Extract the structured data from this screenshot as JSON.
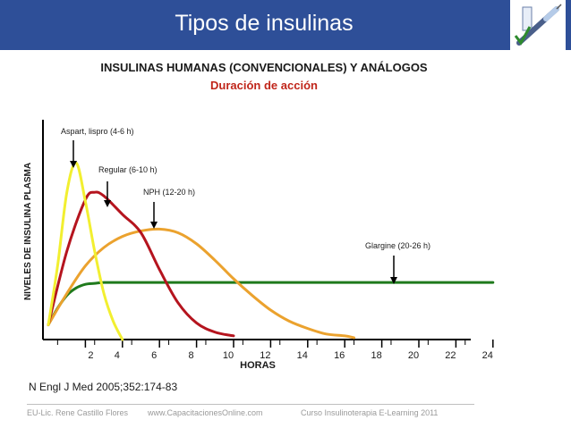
{
  "slide": {
    "title": "Tipos de insulinas",
    "citation": "N Engl J Med 2005;352:174-83",
    "footer": {
      "author": "EU-Lic. Rene Castillo Flores",
      "website": "www.CapacitacionesOnline.com",
      "course": "Curso Insulinoterapia E-Learning 2011"
    }
  },
  "colors": {
    "header_bg": "#2e4f98",
    "subtitle": "#c0251a"
  },
  "chart_data": {
    "type": "line",
    "title": "INSULINAS HUMANAS (CONVENCIONALES) Y ANÁLOGOS",
    "subtitle": "Duración de acción",
    "xlabel": "HORAS",
    "ylabel": "NIVELES DE INSULINA PLASMA",
    "x_ticks": [
      2,
      4,
      6,
      8,
      10,
      12,
      14,
      16,
      18,
      20,
      22,
      24
    ],
    "xlim": [
      0,
      24
    ],
    "ylim": [
      0,
      100
    ],
    "grid": false,
    "series": [
      {
        "name": "Aspart, lispro (4-6 h)",
        "color": "#f2ef30",
        "peak_x": 1.5,
        "x": [
          0,
          0.5,
          1,
          1.5,
          2,
          2.5,
          3,
          3.5,
          4
        ],
        "y": [
          8,
          40,
          80,
          96,
          75,
          48,
          25,
          10,
          0
        ]
      },
      {
        "name": "Regular (6-10 h)",
        "color": "#b5141e",
        "peak_x": 2.5,
        "x": [
          0,
          1,
          2,
          2.5,
          3,
          4,
          5,
          6,
          7,
          8,
          9,
          10
        ],
        "y": [
          8,
          48,
          76,
          80,
          78,
          68,
          58,
          38,
          20,
          9,
          4,
          2
        ]
      },
      {
        "name": "NPH (12-20 h)",
        "color": "#eba22e",
        "peak_x": 6,
        "x": [
          0,
          1,
          2,
          3,
          4,
          5,
          6,
          7,
          8,
          9,
          10,
          11,
          12,
          13,
          14,
          15,
          16,
          16.5
        ],
        "y": [
          8,
          25,
          40,
          50,
          56,
          59,
          60,
          58,
          52,
          43,
          33,
          24,
          16,
          10,
          6,
          3,
          2,
          1
        ]
      },
      {
        "name": "Glargine (20-26 h)",
        "color": "#1f7a1c",
        "peak_x": 20,
        "x": [
          0,
          0.5,
          1,
          1.5,
          2,
          2.5,
          3,
          4,
          6,
          10,
          14,
          18,
          22,
          24
        ],
        "y": [
          8,
          17,
          24,
          28,
          30,
          30.5,
          31,
          31,
          31,
          31,
          31,
          31,
          31,
          31
        ]
      }
    ],
    "annotations": [
      {
        "text": "Aspart, lispro (4-6 h)",
        "x": 1.5
      },
      {
        "text": "Regular (6-10 h)",
        "x": 3.5
      },
      {
        "text": "NPH (12-20 h)",
        "x": 6
      },
      {
        "text": "Glargine (20-26 h)",
        "x": 20
      }
    ]
  }
}
